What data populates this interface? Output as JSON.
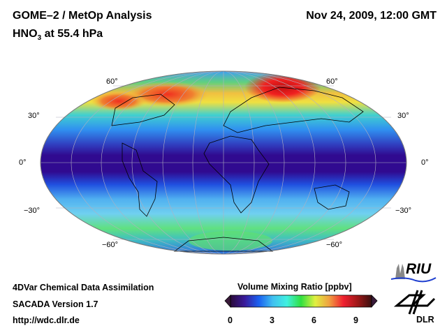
{
  "header": {
    "title_left": "GOME–2 / MetOp Analysis",
    "species": "HNO",
    "species_sub": "3",
    "level": " at 55.4 hPa",
    "datetime": "Nov 24, 2009, 12:00 GMT"
  },
  "map": {
    "projection": "Mollweide",
    "lat_labels_left": [
      "60°",
      "30°",
      "0°",
      "−30°",
      "−60°"
    ],
    "lat_labels_right": [
      "60°",
      "30°",
      "0°",
      "−30°",
      "−60°"
    ]
  },
  "footer": {
    "line1": "4DVar Chemical Data Assimilation",
    "line2": "SACADA Version 1.7",
    "line3": "http://wdc.dlr.de"
  },
  "colorbar": {
    "title": "Volume Mixing Ratio [ppbv]",
    "ticks": [
      "0",
      "3",
      "6",
      "9"
    ],
    "range": [
      0,
      10
    ],
    "colors": [
      "#2a0a3a",
      "#3a1a9a",
      "#1a60f0",
      "#40c0f0",
      "#40f0e0",
      "#30e040",
      "#e0f040",
      "#f0a040",
      "#f02030",
      "#801010",
      "#3a1010"
    ]
  },
  "logos": {
    "riu": "RIU",
    "dlr": "DLR"
  }
}
